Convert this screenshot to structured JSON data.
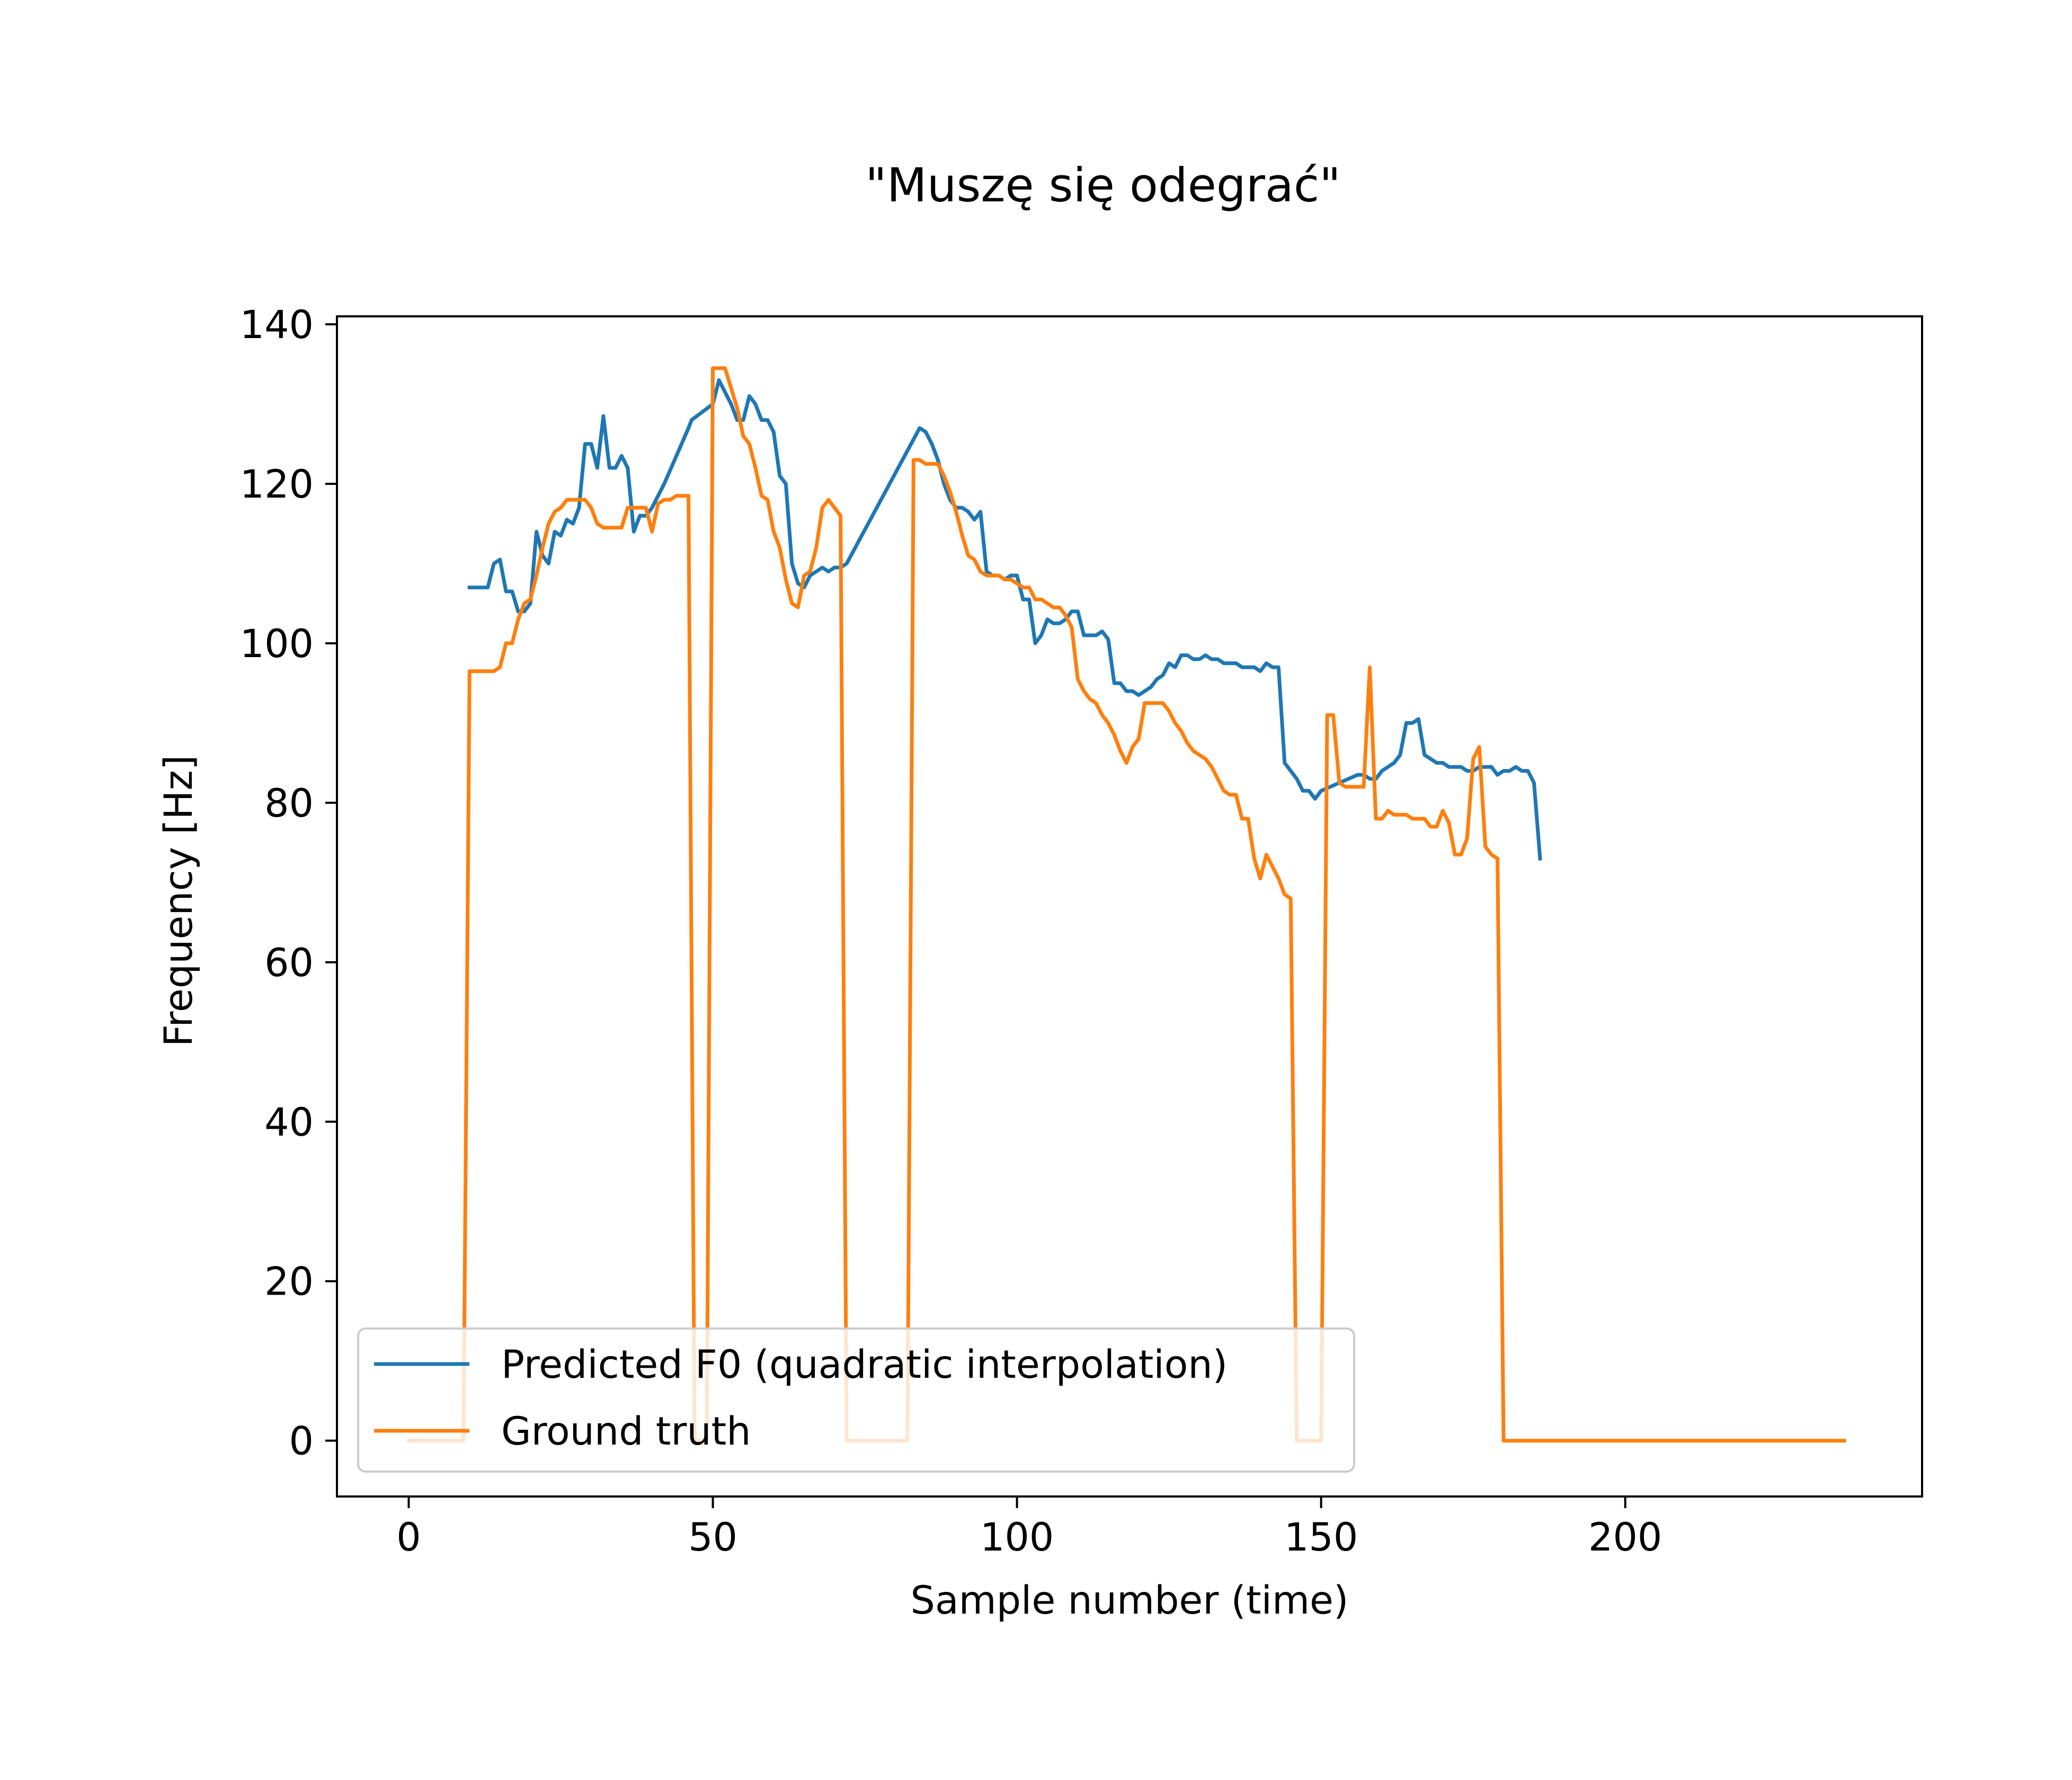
{
  "chart_data": {
    "type": "line",
    "title": "\"Muszę się odegrać\"",
    "xlabel": "Sample number (time)",
    "ylabel": "Frequency [Hz]",
    "xlim": [
      -11.8,
      248.8
    ],
    "ylim": [
      -7,
      141
    ],
    "xticks": [
      0,
      50,
      100,
      150,
      200
    ],
    "yticks": [
      0,
      20,
      40,
      60,
      80,
      100,
      120,
      140
    ],
    "grid": false,
    "legend_position": "lower left",
    "colors": {
      "predicted": "#1f77b4",
      "ground_truth": "#ff7f0e",
      "axes": "#000000",
      "legend_border": "#cccccc"
    },
    "series": [
      {
        "name": "Predicted F0 (quadratic interpolation)",
        "color": "#1f77b4",
        "points": [
          [
            10,
            107
          ],
          [
            13,
            107
          ],
          [
            14,
            110
          ],
          [
            15,
            110.5
          ],
          [
            16,
            106.5
          ],
          [
            17,
            106.5
          ],
          [
            18,
            104
          ],
          [
            19,
            104
          ],
          [
            20,
            105
          ],
          [
            21,
            114
          ],
          [
            22,
            111
          ],
          [
            23,
            110
          ],
          [
            24,
            114
          ],
          [
            25,
            113.5
          ],
          [
            26,
            115.5
          ],
          [
            27,
            115
          ],
          [
            28,
            117
          ],
          [
            29,
            125
          ],
          [
            30,
            125
          ],
          [
            31,
            122
          ],
          [
            32,
            128.5
          ],
          [
            33,
            122
          ],
          [
            34,
            122
          ],
          [
            35,
            123.5
          ],
          [
            36,
            122
          ],
          [
            37,
            114
          ],
          [
            38,
            116
          ],
          [
            39,
            116
          ],
          [
            40,
            117
          ],
          [
            42,
            120
          ],
          [
            44,
            123.5
          ],
          [
            46,
            127
          ],
          [
            46.5,
            128
          ],
          [
            50,
            130
          ],
          [
            51,
            133
          ],
          [
            52,
            131.5
          ],
          [
            53,
            130
          ],
          [
            54,
            128
          ],
          [
            55,
            128
          ],
          [
            56,
            131
          ],
          [
            57,
            130
          ],
          [
            58,
            128
          ],
          [
            59,
            128
          ],
          [
            60,
            126.5
          ],
          [
            61,
            121
          ],
          [
            62,
            120
          ],
          [
            63,
            110
          ],
          [
            64,
            107.5
          ],
          [
            65,
            107
          ],
          [
            66,
            108.5
          ],
          [
            67,
            109
          ],
          [
            68,
            109.5
          ],
          [
            69,
            109
          ],
          [
            70,
            109.5
          ],
          [
            71,
            109.5
          ],
          [
            72,
            110
          ],
          [
            84,
            127
          ],
          [
            85,
            126.5
          ],
          [
            86,
            125
          ],
          [
            87,
            123
          ],
          [
            88,
            120
          ],
          [
            89,
            118
          ],
          [
            90,
            117
          ],
          [
            91,
            117
          ],
          [
            92,
            116.5
          ],
          [
            93,
            115.5
          ],
          [
            94,
            116.5
          ],
          [
            95,
            109
          ],
          [
            96,
            108.5
          ],
          [
            97,
            108.5
          ],
          [
            98,
            108
          ],
          [
            99,
            108.5
          ],
          [
            100,
            108.5
          ],
          [
            101,
            105.5
          ],
          [
            102,
            105.5
          ],
          [
            103,
            100
          ],
          [
            104,
            101
          ],
          [
            105,
            103
          ],
          [
            106,
            102.5
          ],
          [
            107,
            102.5
          ],
          [
            108,
            103
          ],
          [
            109,
            104
          ],
          [
            110,
            104
          ],
          [
            111,
            101
          ],
          [
            112,
            101
          ],
          [
            113,
            101
          ],
          [
            114,
            101.5
          ],
          [
            115,
            100.5
          ],
          [
            116,
            95
          ],
          [
            117,
            95
          ],
          [
            118,
            94
          ],
          [
            119,
            94
          ],
          [
            120,
            93.5
          ],
          [
            121,
            94
          ],
          [
            122,
            94.5
          ],
          [
            123,
            95.5
          ],
          [
            124,
            96
          ],
          [
            125,
            97.5
          ],
          [
            126,
            97
          ],
          [
            127,
            98.5
          ],
          [
            128,
            98.5
          ],
          [
            129,
            98
          ],
          [
            130,
            98
          ],
          [
            131,
            98.5
          ],
          [
            132,
            98
          ],
          [
            133,
            98
          ],
          [
            134,
            97.5
          ],
          [
            135,
            97.5
          ],
          [
            136,
            97.5
          ],
          [
            137,
            97
          ],
          [
            138,
            97
          ],
          [
            139,
            97
          ],
          [
            140,
            96.5
          ],
          [
            141,
            97.5
          ],
          [
            142,
            97
          ],
          [
            143,
            97
          ],
          [
            144,
            85
          ],
          [
            145,
            84
          ],
          [
            146,
            83
          ],
          [
            147,
            81.5
          ],
          [
            148,
            81.5
          ],
          [
            149,
            80.5
          ],
          [
            150,
            81.5
          ],
          [
            156,
            83.5
          ],
          [
            157,
            83.5
          ],
          [
            158,
            83
          ],
          [
            159,
            83
          ],
          [
            160,
            84
          ],
          [
            161,
            84.5
          ],
          [
            162,
            85
          ],
          [
            163,
            86
          ],
          [
            164,
            90
          ],
          [
            165,
            90
          ],
          [
            166,
            90.5
          ],
          [
            167,
            86
          ],
          [
            168,
            85.5
          ],
          [
            169,
            85
          ],
          [
            170,
            85
          ],
          [
            171,
            84.5
          ],
          [
            172,
            84.5
          ],
          [
            173,
            84.5
          ],
          [
            174,
            84
          ],
          [
            175,
            84
          ],
          [
            176,
            84.5
          ],
          [
            177,
            84.5
          ],
          [
            178,
            84.5
          ],
          [
            179,
            83.5
          ],
          [
            180,
            84
          ],
          [
            181,
            84
          ],
          [
            182,
            84.5
          ],
          [
            183,
            84
          ],
          [
            184,
            84
          ],
          [
            185,
            82.5
          ],
          [
            186,
            73
          ]
        ]
      },
      {
        "name": "Ground truth",
        "color": "#ff7f0e",
        "points": [
          [
            0,
            0
          ],
          [
            9,
            0
          ],
          [
            10,
            96.5
          ],
          [
            14,
            96.5
          ],
          [
            15,
            97
          ],
          [
            16,
            100
          ],
          [
            17,
            100
          ],
          [
            18,
            103
          ],
          [
            19,
            105
          ],
          [
            20,
            105.5
          ],
          [
            21,
            108.5
          ],
          [
            22,
            112
          ],
          [
            23,
            115
          ],
          [
            24,
            116.5
          ],
          [
            25,
            117
          ],
          [
            26,
            118
          ],
          [
            27,
            118
          ],
          [
            28,
            118
          ],
          [
            29,
            118
          ],
          [
            30,
            117
          ],
          [
            31,
            115
          ],
          [
            32,
            114.5
          ],
          [
            33,
            114.5
          ],
          [
            34,
            114.5
          ],
          [
            35,
            114.5
          ],
          [
            36,
            117
          ],
          [
            37,
            117
          ],
          [
            38,
            117
          ],
          [
            39,
            117
          ],
          [
            40,
            114
          ],
          [
            41,
            117.5
          ],
          [
            42,
            118
          ],
          [
            43,
            118
          ],
          [
            44,
            118.5
          ],
          [
            45,
            118.5
          ],
          [
            46,
            118.5
          ],
          [
            47,
            0
          ],
          [
            49,
            0
          ],
          [
            50,
            134.5
          ],
          [
            51,
            134.5
          ],
          [
            52,
            134.5
          ],
          [
            53,
            132
          ],
          [
            54,
            129.5
          ],
          [
            55,
            126
          ],
          [
            56,
            125
          ],
          [
            57,
            122
          ],
          [
            58,
            118.5
          ],
          [
            59,
            118
          ],
          [
            60,
            114
          ],
          [
            61,
            112
          ],
          [
            62,
            108
          ],
          [
            63,
            105
          ],
          [
            64,
            104.5
          ],
          [
            65,
            108.5
          ],
          [
            66,
            109
          ],
          [
            67,
            112
          ],
          [
            68,
            117
          ],
          [
            69,
            118
          ],
          [
            70,
            117
          ],
          [
            71,
            116
          ],
          [
            72,
            0
          ],
          [
            82,
            0
          ],
          [
            83,
            123
          ],
          [
            84,
            123
          ],
          [
            85,
            122.5
          ],
          [
            86,
            122.5
          ],
          [
            87,
            122.5
          ],
          [
            88,
            121
          ],
          [
            89,
            119
          ],
          [
            90,
            116.5
          ],
          [
            91,
            113.5
          ],
          [
            92,
            111
          ],
          [
            93,
            110.5
          ],
          [
            94,
            109
          ],
          [
            95,
            108.5
          ],
          [
            96,
            108.5
          ],
          [
            97,
            108.5
          ],
          [
            98,
            108
          ],
          [
            99,
            108
          ],
          [
            100,
            107.5
          ],
          [
            101,
            107
          ],
          [
            102,
            107
          ],
          [
            103,
            105.5
          ],
          [
            104,
            105.5
          ],
          [
            105,
            105
          ],
          [
            106,
            104.5
          ],
          [
            107,
            104.5
          ],
          [
            108,
            103.5
          ],
          [
            109,
            102
          ],
          [
            110,
            95.5
          ],
          [
            111,
            94
          ],
          [
            112,
            93
          ],
          [
            113,
            92.5
          ],
          [
            114,
            91
          ],
          [
            115,
            90
          ],
          [
            116,
            88.5
          ],
          [
            117,
            86.5
          ],
          [
            118,
            85
          ],
          [
            119,
            87
          ],
          [
            120,
            88
          ],
          [
            121,
            92.5
          ],
          [
            122,
            92.5
          ],
          [
            123,
            92.5
          ],
          [
            124,
            92.5
          ],
          [
            125,
            91.5
          ],
          [
            126,
            90
          ],
          [
            127,
            89
          ],
          [
            128,
            87.5
          ],
          [
            129,
            86.5
          ],
          [
            130,
            86
          ],
          [
            131,
            85.5
          ],
          [
            132,
            84.5
          ],
          [
            133,
            83
          ],
          [
            134,
            81.5
          ],
          [
            135,
            81
          ],
          [
            136,
            81
          ],
          [
            137,
            78
          ],
          [
            138,
            78
          ],
          [
            139,
            73
          ],
          [
            140,
            70.5
          ],
          [
            141,
            73.5
          ],
          [
            142,
            72
          ],
          [
            143,
            70.5
          ],
          [
            144,
            68.5
          ],
          [
            145,
            68
          ],
          [
            146,
            0
          ],
          [
            150,
            0
          ],
          [
            151,
            91
          ],
          [
            152,
            91
          ],
          [
            153,
            82.5
          ],
          [
            154,
            82
          ],
          [
            155,
            82
          ],
          [
            156,
            82
          ],
          [
            157,
            82
          ],
          [
            158,
            97
          ],
          [
            159,
            78
          ],
          [
            160,
            78
          ],
          [
            161,
            79
          ],
          [
            162,
            78.5
          ],
          [
            163,
            78.5
          ],
          [
            164,
            78.5
          ],
          [
            165,
            78
          ],
          [
            166,
            78
          ],
          [
            167,
            78
          ],
          [
            168,
            77
          ],
          [
            169,
            77
          ],
          [
            170,
            79
          ],
          [
            171,
            77.5
          ],
          [
            172,
            73.5
          ],
          [
            173,
            73.5
          ],
          [
            174,
            75.5
          ],
          [
            175,
            85.5
          ],
          [
            176,
            87
          ],
          [
            177,
            74.5
          ],
          [
            178,
            73.5
          ],
          [
            179,
            73
          ],
          [
            180,
            0
          ],
          [
            236,
            0
          ]
        ]
      }
    ]
  }
}
